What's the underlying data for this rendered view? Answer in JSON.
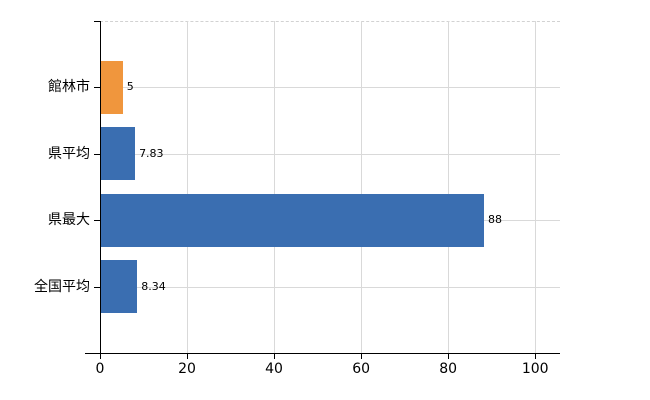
{
  "chart_data": {
    "type": "bar",
    "orientation": "horizontal",
    "title": "",
    "xlabel": "",
    "ylabel": "",
    "categories": [
      "館林市",
      "県平均",
      "県最大",
      "全国平均"
    ],
    "values": [
      5,
      7.83,
      88,
      8.34
    ],
    "value_labels": [
      "5",
      "7.83",
      "88",
      "8.34"
    ],
    "bar_colors": [
      "#f0963d",
      "#3a6eb1",
      "#3a6eb1",
      "#3a6eb1"
    ],
    "xticks": [
      0,
      20,
      40,
      60,
      80,
      100
    ],
    "xtick_labels": [
      "0",
      "20",
      "40",
      "60",
      "80",
      "100"
    ],
    "xlim": [
      0,
      105.7
    ],
    "grid": true,
    "legend_position": "none"
  },
  "colors": {
    "bar_orange": "#f0963d",
    "bar_blue": "#3a6eb1",
    "gridline": "#d9d9d9",
    "axis": "#000000",
    "text": "#000000",
    "background": "#ffffff"
  }
}
